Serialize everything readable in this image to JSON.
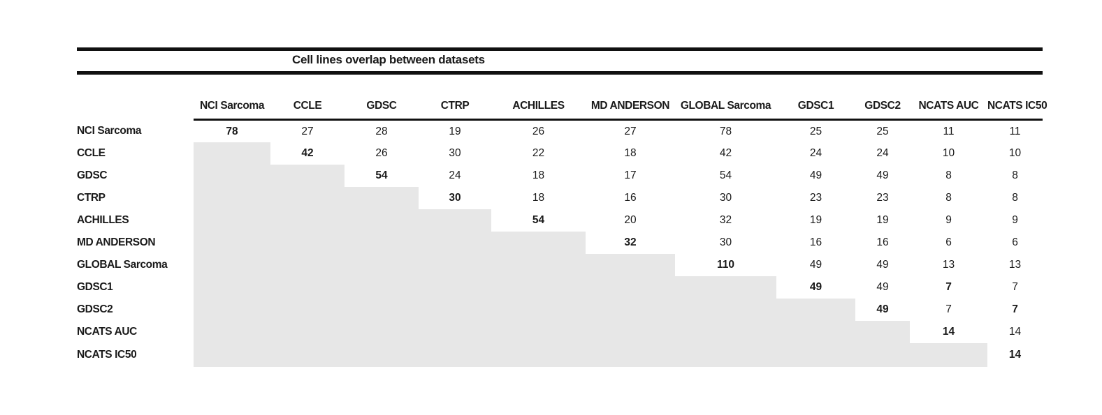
{
  "chart_data": {
    "type": "table",
    "title": "Cell lines overlap between datasets",
    "columns": [
      "NCI Sarcoma",
      "CCLE",
      "GDSC",
      "CTRP",
      "ACHILLES",
      "MD ANDERSON",
      "GLOBAL Sarcoma",
      "GDSC1",
      "GDSC2",
      "NCATS AUC",
      "NCATS IC50"
    ],
    "row_labels": [
      "NCI Sarcoma",
      "CCLE",
      "GDSC",
      "CTRP",
      "ACHILLES",
      "MD ANDERSON",
      "GLOBAL Sarcoma",
      "GDSC1",
      "GDSC2",
      "NCATS AUC",
      "NCATS IC50"
    ],
    "matrix": [
      [
        78,
        27,
        28,
        19,
        26,
        27,
        78,
        25,
        25,
        11,
        11
      ],
      [
        null,
        42,
        26,
        30,
        22,
        18,
        42,
        24,
        24,
        10,
        10
      ],
      [
        null,
        null,
        54,
        24,
        18,
        17,
        54,
        49,
        49,
        8,
        8
      ],
      [
        null,
        null,
        null,
        30,
        18,
        16,
        30,
        23,
        23,
        8,
        8
      ],
      [
        null,
        null,
        null,
        null,
        54,
        20,
        32,
        19,
        19,
        9,
        9
      ],
      [
        null,
        null,
        null,
        null,
        null,
        32,
        30,
        16,
        16,
        6,
        6
      ],
      [
        null,
        null,
        null,
        null,
        null,
        null,
        110,
        49,
        49,
        13,
        13
      ],
      [
        null,
        null,
        null,
        null,
        null,
        null,
        null,
        49,
        49,
        7,
        7
      ],
      [
        null,
        null,
        null,
        null,
        null,
        null,
        null,
        null,
        49,
        7,
        7
      ],
      [
        null,
        null,
        null,
        null,
        null,
        null,
        null,
        null,
        null,
        14,
        14
      ],
      [
        null,
        null,
        null,
        null,
        null,
        null,
        null,
        null,
        null,
        null,
        14
      ]
    ],
    "bold_cells": [
      [
        0,
        0
      ],
      [
        1,
        1
      ],
      [
        2,
        2
      ],
      [
        3,
        3
      ],
      [
        4,
        4
      ],
      [
        5,
        5
      ],
      [
        6,
        6
      ],
      [
        7,
        7
      ],
      [
        8,
        8
      ],
      [
        9,
        9
      ],
      [
        10,
        10
      ],
      [
        7,
        9
      ],
      [
        8,
        10
      ]
    ],
    "shaded_region": "lower-triangle",
    "shade_color": "#e7e7e7",
    "rule_color": "#111111",
    "legend_position": "none",
    "grid": false
  }
}
